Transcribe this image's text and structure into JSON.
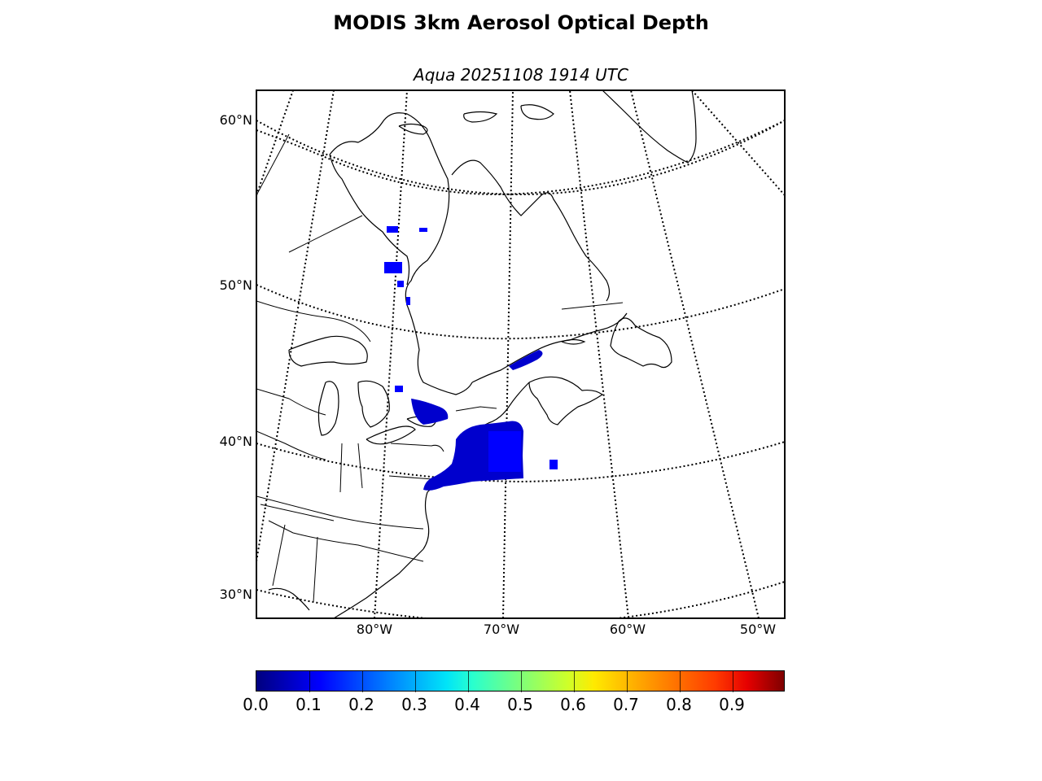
{
  "title": "MODIS 3km Aerosol Optical Depth",
  "subtitle": "Aqua 20251108 1914 UTC",
  "lat_labels": [
    "60°N",
    "50°N",
    "40°N",
    "30°N"
  ],
  "lon_labels": [
    "80°W",
    "70°W",
    "60°W",
    "50°W"
  ],
  "colorbar": {
    "labels": [
      "0.0",
      "0.1",
      "0.2",
      "0.3",
      "0.4",
      "0.5",
      "0.6",
      "0.7",
      "0.8",
      "0.9"
    ],
    "colormap": "jet",
    "min": 0.0,
    "max": 1.0
  },
  "colors": {
    "aod_low": "#0000cd",
    "aod_mid": "#0000ff",
    "coastline": "#000000",
    "graticule": "#000000"
  }
}
